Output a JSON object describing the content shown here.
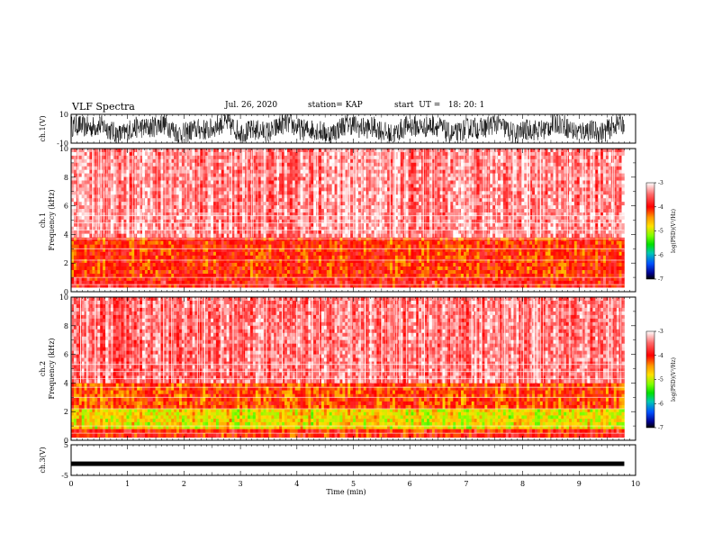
{
  "header": {
    "title": "VLF Spectra",
    "date": "Jul. 26, 2020",
    "station": "station= KAP",
    "start": "start  UT =   18: 20: 1"
  },
  "colors": {
    "frame": "#000000",
    "background": "#ffffff",
    "colormap": [
      "#ffffff",
      "#ff5a5a",
      "#ff0000",
      "#ff8c00",
      "#ffd400",
      "#7fff00",
      "#00e000",
      "#00c8a0",
      "#0064ff",
      "#0000a0",
      "#000000"
    ]
  },
  "chart_data": [
    {
      "type": "line",
      "panel": "ch1-waveform",
      "ylabel": "ch.1(V)",
      "ylim": [
        -10,
        10
      ],
      "yticklabels": [
        "10",
        "-10"
      ],
      "series": [
        {
          "x_range_min": [
            0,
            9.8
          ],
          "amplitude_v": [
            -10,
            10
          ]
        }
      ]
    },
    {
      "type": "heatmap",
      "panel": "ch1-spectrogram",
      "ylabel": "ch.1\nFrequency (kHz)",
      "ylim": [
        0,
        10
      ],
      "yticks": [
        0,
        2,
        4,
        6,
        8,
        10
      ],
      "colorbar": {
        "label": "log(PSD)(V²/Hz)",
        "range": [
          -7,
          -3
        ],
        "ticks": [
          "-3",
          "-4",
          "-5",
          "-6",
          "-7"
        ]
      },
      "bands_khz": [
        {
          "range": [
            0.3,
            1.0
          ],
          "log_psd": -3.9
        },
        {
          "range": [
            1.0,
            3.8
          ],
          "log_psd": -4.1
        },
        {
          "range": [
            3.8,
            10.0
          ],
          "log_psd": -3.4
        }
      ]
    },
    {
      "type": "heatmap",
      "panel": "ch2-spectrogram",
      "ylabel": "ch.2\nFrequency (kHz)",
      "ylim": [
        0,
        10
      ],
      "yticks": [
        0,
        2,
        4,
        6,
        8,
        10
      ],
      "colorbar": {
        "label": "log(PSD)(V²/Hz)",
        "range": [
          -7,
          -3
        ],
        "ticks": [
          "-3",
          "-4",
          "-5",
          "-6",
          "-7"
        ]
      },
      "bands_khz": [
        {
          "range": [
            0.2,
            0.8
          ],
          "log_psd": -4.0
        },
        {
          "range": [
            0.8,
            2.2
          ],
          "log_psd": -4.8
        },
        {
          "range": [
            2.2,
            4.0
          ],
          "log_psd": -4.2
        },
        {
          "range": [
            4.0,
            10.0
          ],
          "log_psd": -3.5
        }
      ]
    },
    {
      "type": "line",
      "panel": "ch3-waveform",
      "ylabel": "ch.3(V)",
      "ylim": [
        -5,
        5
      ],
      "yticklabels": [
        "5",
        "-5"
      ],
      "series": [
        {
          "level_v": -1.2
        }
      ]
    }
  ],
  "time_axis": {
    "xlabel": "Time (min)",
    "xlim": [
      0,
      10
    ],
    "ticklabels": [
      "0",
      "1",
      "2",
      "3",
      "4",
      "5",
      "6",
      "7",
      "8",
      "9",
      "10"
    ],
    "data_end_min": 9.8
  }
}
